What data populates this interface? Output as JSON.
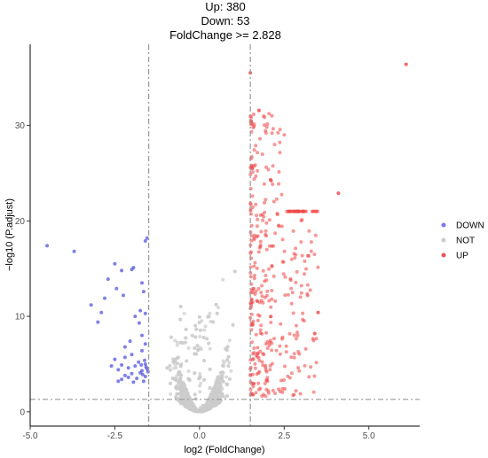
{
  "chart_data": {
    "type": "scatter",
    "title_lines": [
      "Up: 380",
      "Down: 53",
      "FoldChange >= 2.828"
    ],
    "xlabel": "log2 (FoldChange)",
    "ylabel": "−log10 (P.adjust)",
    "xlim": [
      -5.0,
      6.5
    ],
    "ylim": [
      -1.5,
      38.5
    ],
    "x_ticks": [
      -5.0,
      -2.5,
      0.0,
      2.5,
      5.0
    ],
    "x_tick_labels": [
      "-5.0",
      "-2.5",
      "0.0",
      "2.5",
      "5.0"
    ],
    "y_ticks": [
      0,
      10,
      20,
      30
    ],
    "y_tick_labels": [
      "0",
      "10",
      "20",
      "30"
    ],
    "thresholds": {
      "x": [
        -1.5,
        1.5
      ],
      "y": 1.3
    },
    "grid": false,
    "legend_position": "right",
    "legend": [
      {
        "label": "DOWN",
        "color": "#7777ee"
      },
      {
        "label": "NOT",
        "color": "#cccccc"
      },
      {
        "label": "UP",
        "color": "#ee5555"
      }
    ],
    "series": [
      {
        "name": "DOWN",
        "color": "#5555dd",
        "points": [
          [
            -4.5,
            17.4
          ],
          [
            -3.7,
            16.8
          ],
          [
            -2.5,
            15.5
          ],
          [
            -2.3,
            14.8
          ],
          [
            -2.0,
            14.9
          ],
          [
            -1.95,
            15.1
          ],
          [
            -2.7,
            13.9
          ],
          [
            -1.7,
            13.5
          ],
          [
            -2.45,
            12.9
          ],
          [
            -1.65,
            12.6
          ],
          [
            -2.25,
            12.2
          ],
          [
            -2.8,
            11.9
          ],
          [
            -3.2,
            11.2
          ],
          [
            -1.75,
            10.6
          ],
          [
            -2.9,
            10.4
          ],
          [
            -1.6,
            10.3
          ],
          [
            -3.0,
            9.4
          ],
          [
            -1.7,
            8.0
          ],
          [
            -1.6,
            7.1
          ],
          [
            -2.2,
            6.8
          ],
          [
            -1.7,
            6.4
          ],
          [
            -2.0,
            6.0
          ],
          [
            -2.2,
            5.7
          ],
          [
            -2.5,
            5.5
          ],
          [
            -1.8,
            5.2
          ],
          [
            -1.6,
            5.0
          ],
          [
            -2.3,
            4.9
          ],
          [
            -1.9,
            4.8
          ],
          [
            -2.1,
            4.6
          ],
          [
            -1.55,
            4.5
          ],
          [
            -2.4,
            4.4
          ],
          [
            -1.7,
            4.3
          ],
          [
            -1.75,
            4.1
          ],
          [
            -2.0,
            4.0
          ],
          [
            -2.2,
            3.8
          ],
          [
            -1.6,
            3.7
          ],
          [
            -1.85,
            3.5
          ],
          [
            -2.3,
            3.4
          ],
          [
            -1.65,
            3.2
          ],
          [
            -1.95,
            3.1
          ],
          [
            -2.1,
            3.6
          ],
          [
            -1.58,
            4.7
          ],
          [
            -1.62,
            5.4
          ],
          [
            -1.52,
            4.2
          ],
          [
            -1.55,
            18.2
          ],
          [
            -1.6,
            17.9
          ],
          [
            -2.05,
            7.4
          ],
          [
            -1.78,
            9.3
          ],
          [
            -1.9,
            10.0
          ],
          [
            -2.6,
            4.8
          ],
          [
            -2.4,
            3.2
          ],
          [
            -1.68,
            3.9
          ],
          [
            -1.72,
            4.9
          ]
        ]
      }
    ],
    "highlight_points": [
      {
        "series": "UP",
        "x": 6.1,
        "y": 36.4
      },
      {
        "series": "UP",
        "x": 4.1,
        "y": 22.9
      },
      {
        "series": "UP",
        "x": 1.5,
        "y": 35.5
      },
      {
        "series": "UP",
        "x": 2.1,
        "y": 24.3
      },
      {
        "series": "UP",
        "x": 3.5,
        "y": 10.4
      },
      {
        "series": "UP",
        "x": 3.4,
        "y": 8.2
      }
    ],
    "summary": {
      "up_count": 380,
      "down_count": 53,
      "fold_change_threshold": 2.828
    }
  }
}
